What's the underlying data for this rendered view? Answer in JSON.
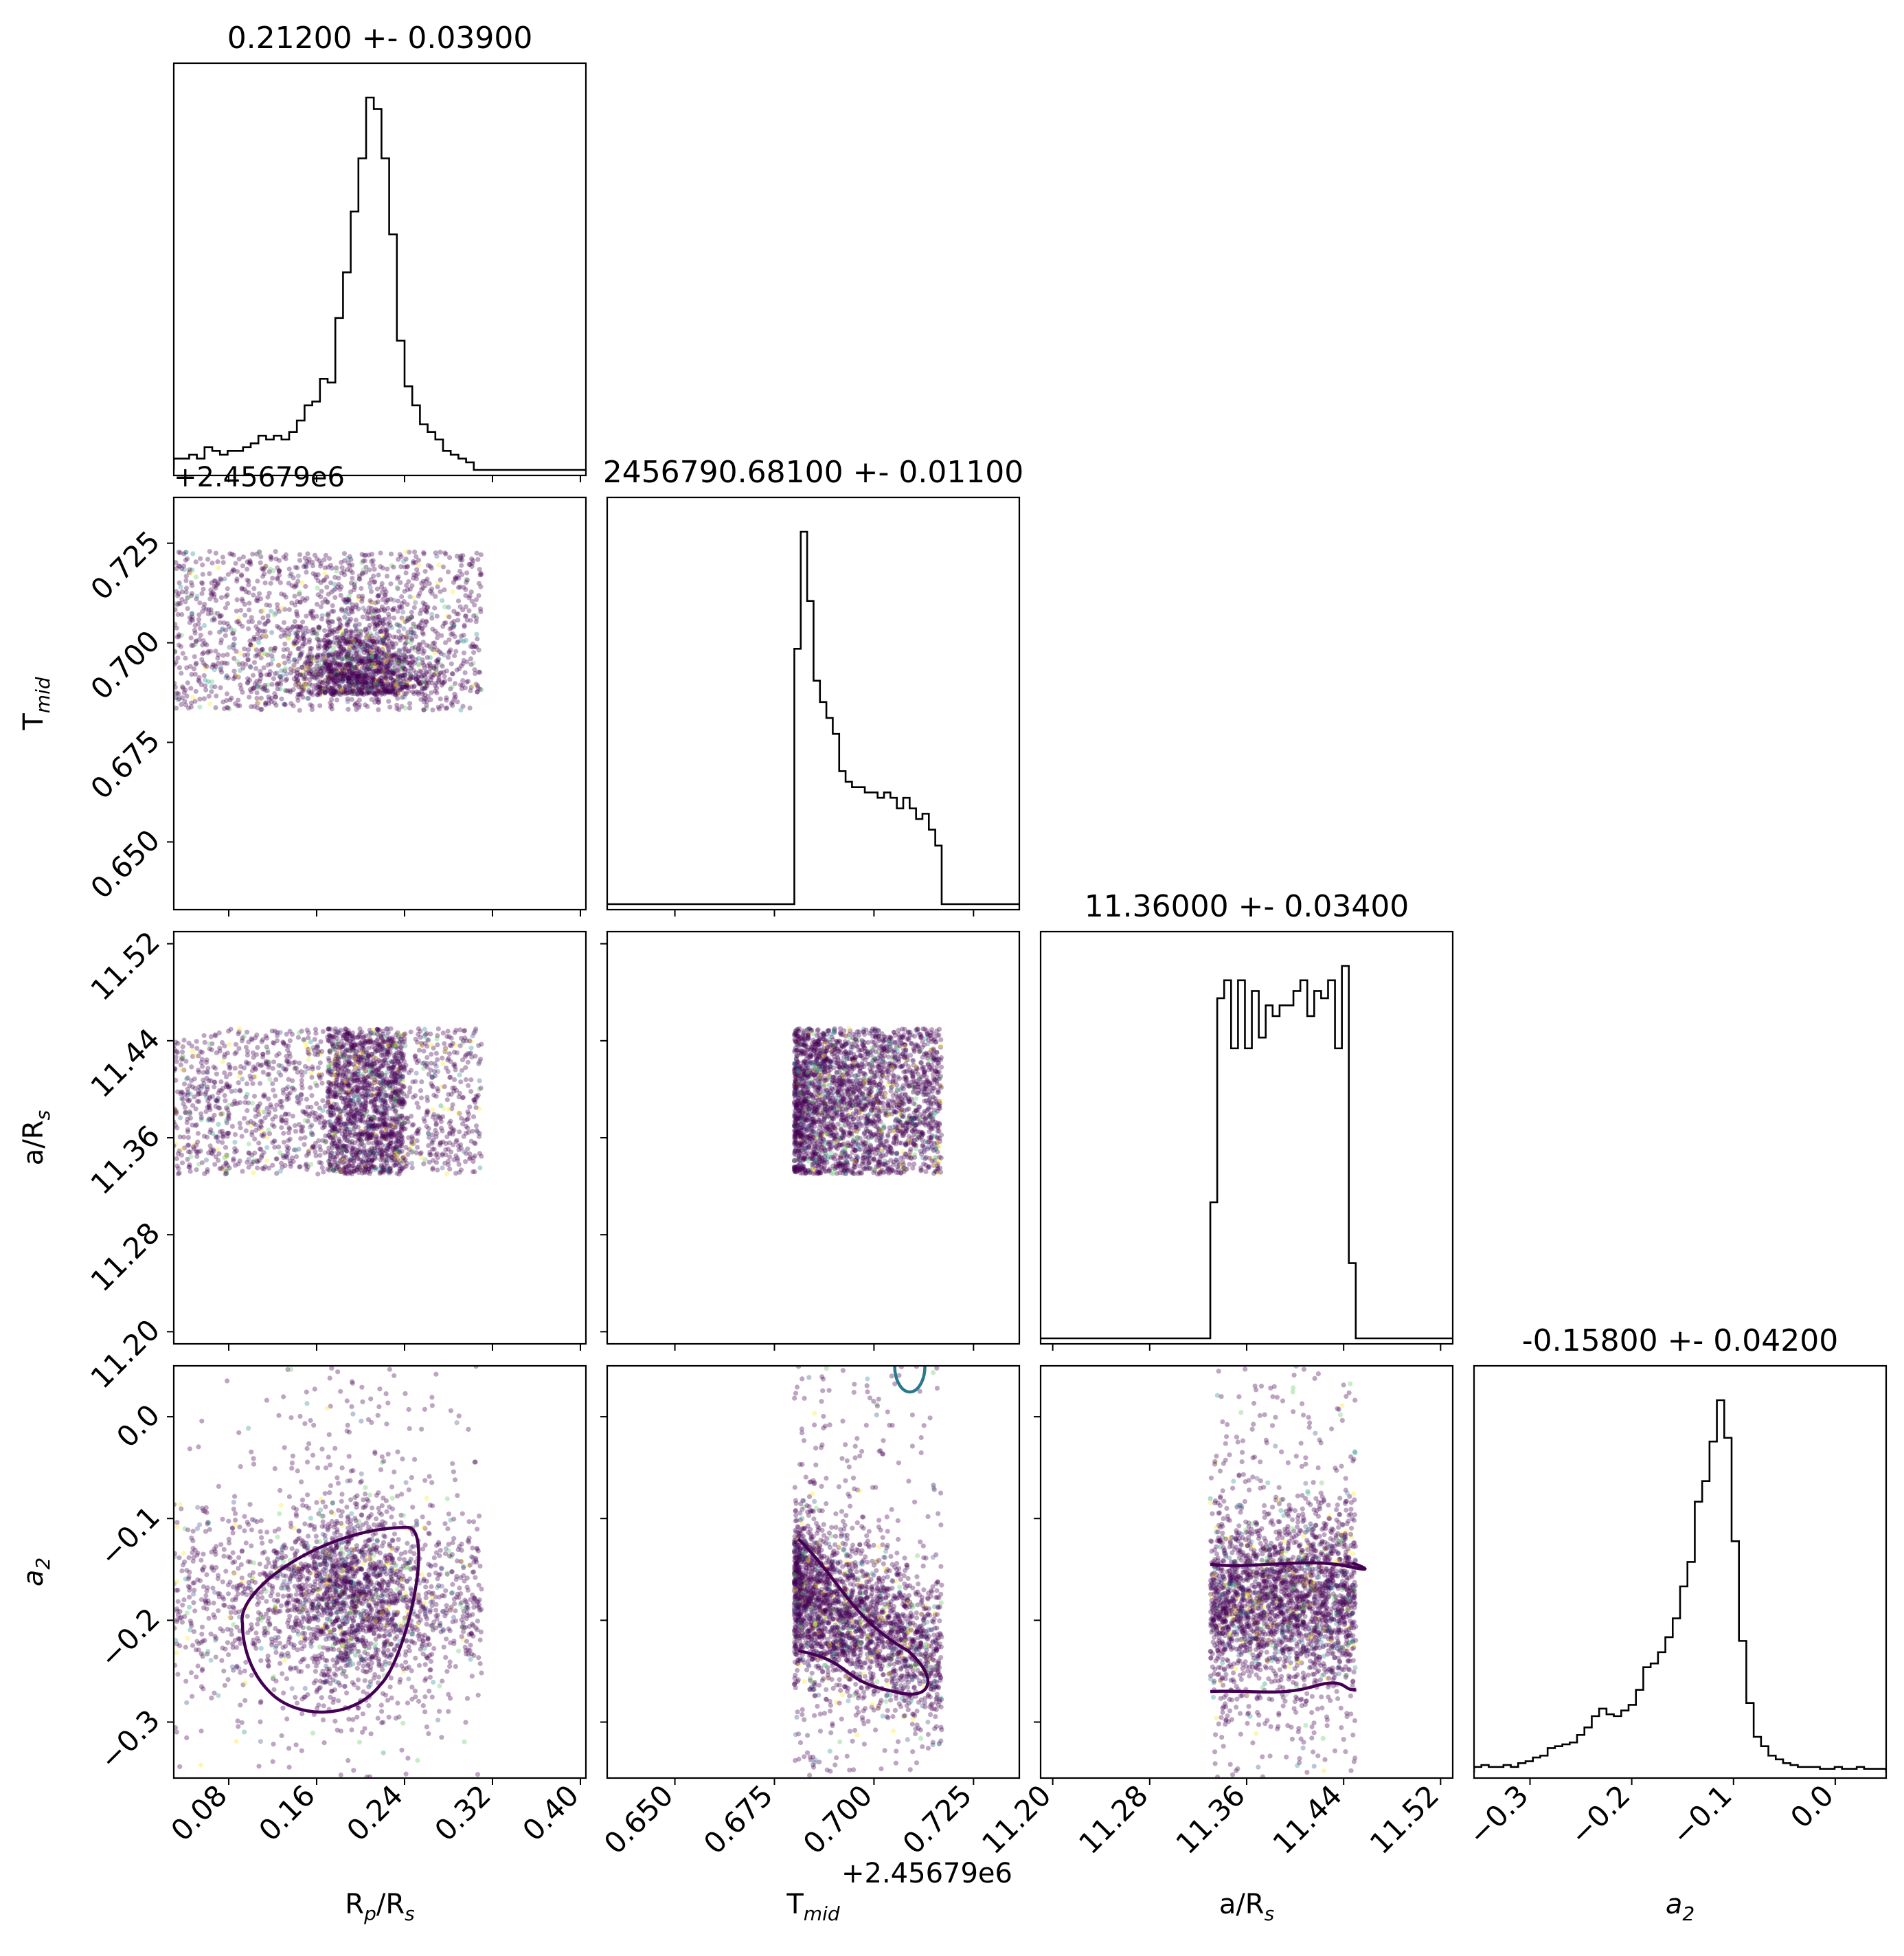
{
  "chart_data": {
    "type": "scatter",
    "layout": "corner-plot",
    "parameters": [
      {
        "key": "rp",
        "label_main": "R",
        "label_sub1": "p",
        "label_mid": "/R",
        "label_sub2": "s",
        "title": "0.21200 +- 0.03900",
        "ticks": [
          "0.08",
          "0.16",
          "0.24",
          "0.32",
          "0.40"
        ],
        "tick_values": [
          0.08,
          0.16,
          0.24,
          0.32,
          0.4
        ],
        "range": [
          0.03,
          0.405
        ],
        "offset_label": ""
      },
      {
        "key": "tmid",
        "label_main": "T",
        "label_sub1": "mid",
        "label_mid": "",
        "label_sub2": "",
        "title": "2456790.68100 +- 0.01100",
        "ticks": [
          "0.650",
          "0.675",
          "0.700",
          "0.725"
        ],
        "tick_values": [
          0.65,
          0.675,
          0.7,
          0.725
        ],
        "range": [
          0.633,
          0.7365
        ],
        "offset_label": "+2.45679e6"
      },
      {
        "key": "ars",
        "label_main": "a/R",
        "label_sub1": "",
        "label_mid": "",
        "label_sub2": "s",
        "title": "11.36000 +- 0.03400",
        "ticks": [
          "11.20",
          "11.28",
          "11.36",
          "11.44",
          "11.52"
        ],
        "tick_values": [
          11.2,
          11.28,
          11.36,
          11.44,
          11.52
        ],
        "range": [
          11.19,
          11.53
        ],
        "offset_label": ""
      },
      {
        "key": "a2",
        "label_main": "a",
        "label_sub1": "",
        "label_mid": "",
        "label_sub2": "2",
        "title": "-0.15800 +- 0.04200",
        "ticks": [
          "−0.3",
          "−0.2",
          "−0.1",
          "0.0"
        ],
        "tick_values": [
          -0.3,
          -0.2,
          -0.1,
          0.0
        ],
        "range": [
          -0.355,
          0.05
        ],
        "offset_label": ""
      }
    ],
    "histograms": {
      "rp": {
        "edges_range": [
          0.03,
          0.31
        ],
        "counts": [
          3,
          3,
          4,
          3,
          6,
          5,
          4,
          5,
          5,
          6,
          7,
          9,
          8,
          9,
          8,
          10,
          13,
          17,
          18,
          24,
          23,
          40,
          52,
          68,
          82,
          98,
          95,
          82,
          62,
          34,
          22,
          17,
          12,
          10,
          8,
          5,
          4,
          3,
          2,
          0
        ]
      },
      "tmid": {
        "edges_range": [
          0.68,
          0.717
        ],
        "counts": [
          48,
          70,
          57,
          42,
          38,
          35,
          32,
          25,
          23,
          22,
          22,
          21,
          21,
          20,
          21,
          20,
          18,
          20,
          18,
          16,
          17,
          14,
          11
        ]
      },
      "ars": {
        "edges_range": [
          11.33,
          11.45
        ],
        "counts": [
          38,
          95,
          100,
          81,
          100,
          81,
          97,
          84,
          93,
          90,
          93,
          93,
          97,
          100,
          90,
          97,
          95,
          100,
          81,
          104,
          21
        ]
      },
      "a2": {
        "edges_range": [
          -0.355,
          0.05
        ],
        "counts": [
          3,
          4,
          3,
          3,
          4,
          3,
          5,
          6,
          8,
          9,
          13,
          14,
          15,
          16,
          20,
          24,
          30,
          34,
          31,
          30,
          33,
          36,
          44,
          56,
          58,
          64,
          72,
          82,
          99,
          112,
          144,
          155,
          176,
          198,
          178,
          123,
          70,
          37,
          19,
          14,
          9,
          7,
          5,
          4,
          3,
          3,
          3,
          2,
          2,
          3,
          2,
          2,
          3,
          2,
          2,
          2
        ]
      }
    },
    "series": [
      {
        "x": "rp",
        "y": "tmid",
        "x_range": [
          0.03,
          0.31
        ],
        "y_range": [
          0.683,
          0.723
        ],
        "dense_center_x": 0.2,
        "dense_center_y": 0.687
      },
      {
        "x": "rp",
        "y": "ars",
        "x_range": [
          0.03,
          0.31
        ],
        "y_range": [
          11.33,
          11.45
        ],
        "dense_band_x": [
          0.17,
          0.24
        ]
      },
      {
        "x": "tmid",
        "y": "ars",
        "x_range": [
          0.68,
          0.717
        ],
        "y_range": [
          11.33,
          11.45
        ]
      },
      {
        "x": "rp",
        "y": "a2",
        "x_range": [
          0.03,
          0.31
        ],
        "y_range": [
          -0.355,
          0.05
        ]
      },
      {
        "x": "tmid",
        "y": "a2",
        "x_range": [
          0.68,
          0.717
        ],
        "y_range": [
          -0.355,
          0.05
        ]
      },
      {
        "x": "ars",
        "y": "a2",
        "x_range": [
          11.33,
          11.45
        ],
        "y_range": [
          -0.355,
          0.05
        ]
      }
    ],
    "contour_levels": [
      "#440154",
      "#2a788e"
    ],
    "grid": false,
    "legend": "none"
  }
}
